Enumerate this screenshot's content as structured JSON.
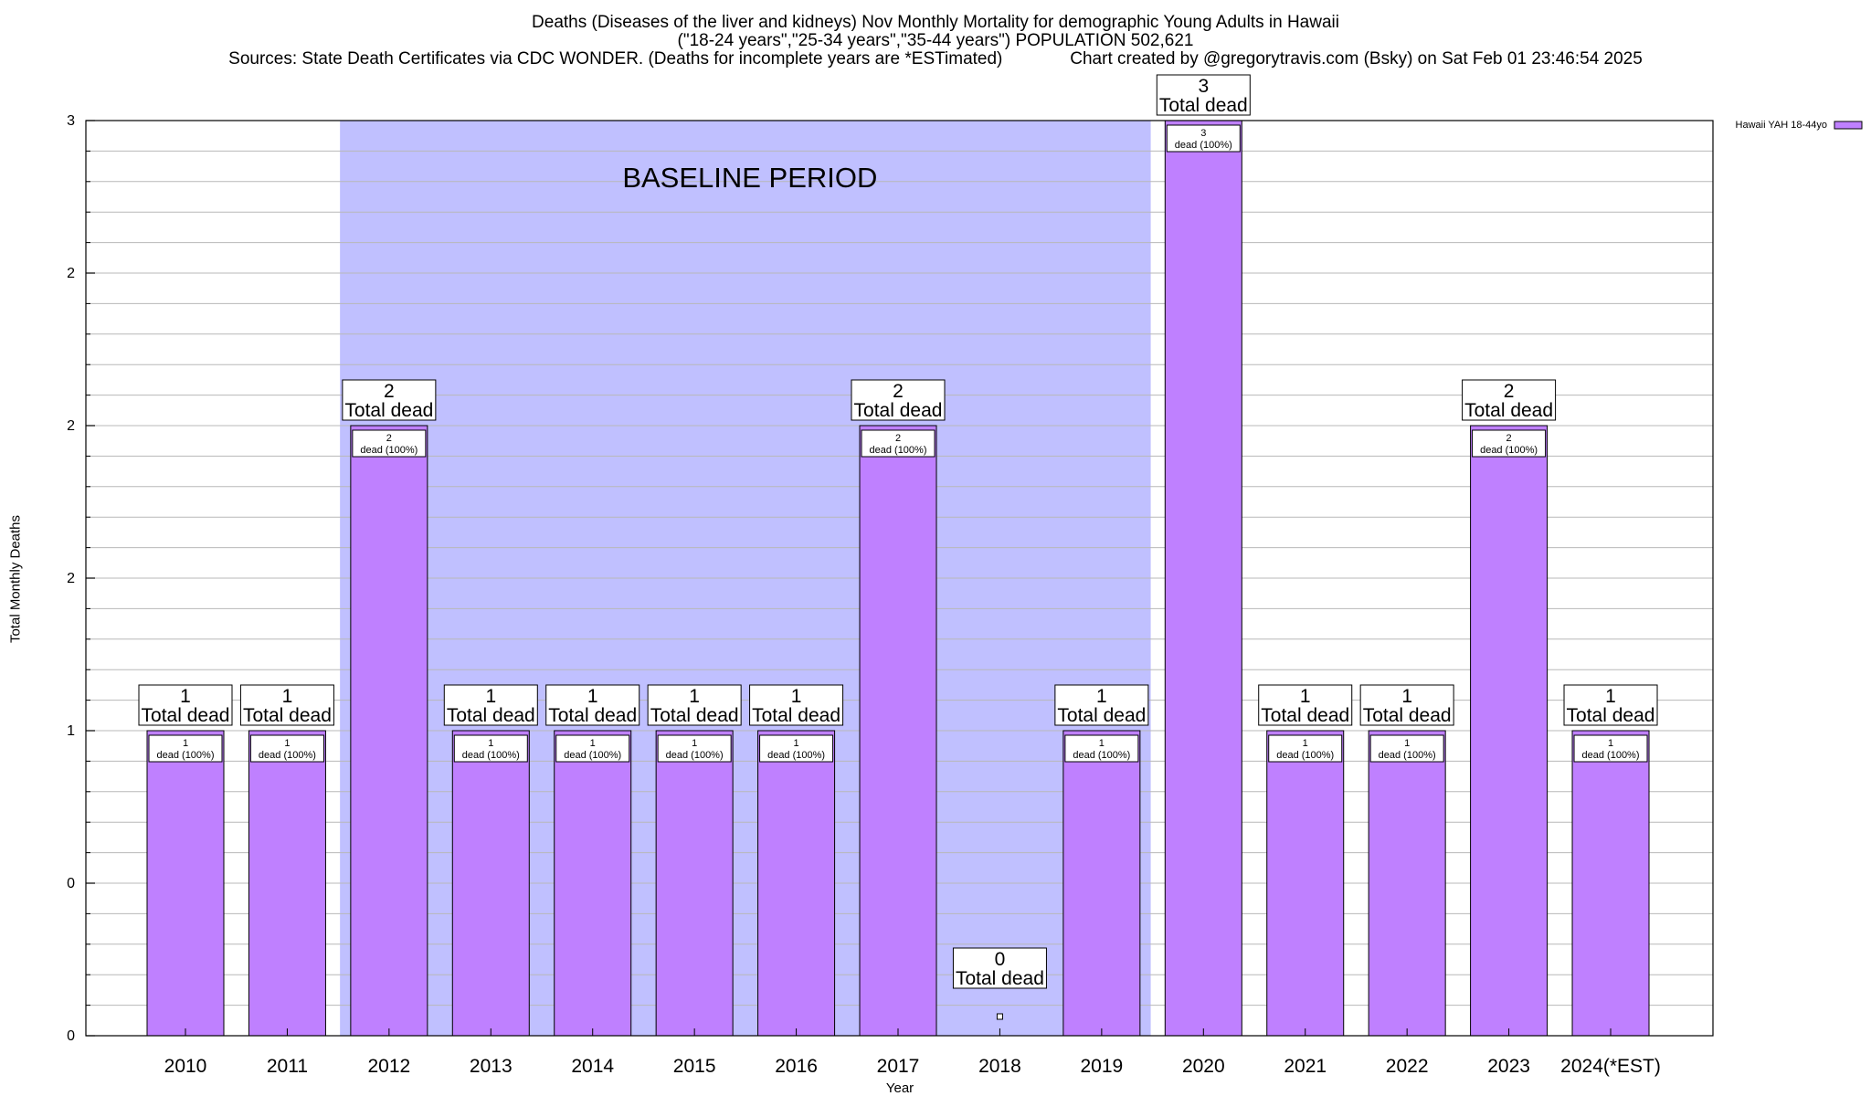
{
  "chart_data": {
    "type": "bar",
    "title_lines": [
      "Deaths (Diseases of the liver and kidneys) Nov Monthly Mortality for demographic Young Adults in Hawaii",
      "(\"18-24 years\",\"25-34 years\",\"35-44 years\") POPULATION 502,621",
      "Sources: State Death Certificates via CDC WONDER. (Deaths for incomplete years are *ESTimated)              Chart created by @gregorytravis.com (Bsky) on Sat Feb 01 23:46:54 2025"
    ],
    "xlabel": "Year",
    "ylabel": "Total Monthly Deaths",
    "ylim": [
      0,
      3
    ],
    "yticks": [
      0,
      0.5,
      1,
      1.5,
      2,
      2.5,
      3
    ],
    "ytick_labels": [
      "0",
      "0",
      "1",
      "2",
      "2",
      "2",
      "3"
    ],
    "grid": true,
    "categories": [
      "2010",
      "2011",
      "2012",
      "2013",
      "2014",
      "2015",
      "2016",
      "2017",
      "2018",
      "2019",
      "2020",
      "2021",
      "2022",
      "2023",
      "2024(*EST)"
    ],
    "series": [
      {
        "name": "Hawaii YAH 18-44yo",
        "color": "#bf80ff",
        "values": [
          1,
          1,
          2,
          1,
          1,
          1,
          1,
          2,
          0,
          1,
          3,
          1,
          1,
          2,
          1
        ]
      }
    ],
    "legend_position": "top-right",
    "baseline_region": {
      "label": "BASELINE PERIOD",
      "start_category": "2012",
      "end_category": "2019",
      "color": "#c0c0ff"
    },
    "total_label_suffix": "Total dead",
    "inner_label_suffix": "dead (100%)"
  }
}
